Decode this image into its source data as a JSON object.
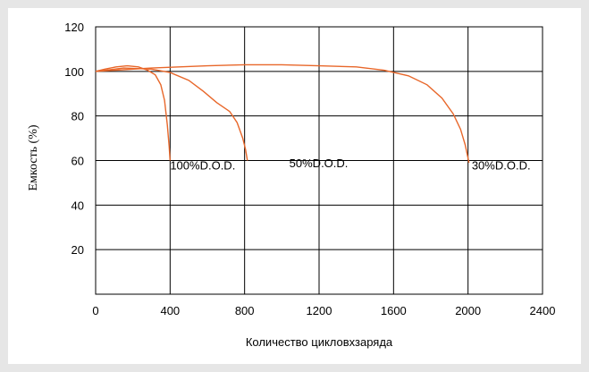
{
  "chart_data": {
    "type": "line",
    "xlabel": "Количество цикловхзаряда",
    "ylabel": "Емкость (%)",
    "xlim": [
      0,
      2400
    ],
    "ylim": [
      0,
      120
    ],
    "x_ticks": [
      "0",
      "400",
      "800",
      "1200",
      "1600",
      "2000",
      "2400"
    ],
    "y_ticks": [
      "20",
      "40",
      "60",
      "80",
      "100",
      "120"
    ],
    "grid": true,
    "color": "#e8672a",
    "series": [
      {
        "points": [
          [
            0,
            100
          ],
          [
            50,
            101
          ],
          [
            110,
            102
          ],
          [
            170,
            102.5
          ],
          [
            230,
            102
          ],
          [
            280,
            100.5
          ],
          [
            320,
            98.5
          ],
          [
            350,
            94
          ],
          [
            370,
            87
          ],
          [
            385,
            76
          ],
          [
            395,
            66
          ],
          [
            400,
            60
          ]
        ]
      },
      {
        "points": [
          [
            0,
            100
          ],
          [
            150,
            101.5
          ],
          [
            300,
            101
          ],
          [
            400,
            99.5
          ],
          [
            500,
            96
          ],
          [
            580,
            91
          ],
          [
            650,
            86
          ],
          [
            720,
            82
          ],
          [
            760,
            77
          ],
          [
            790,
            70
          ],
          [
            805,
            65
          ],
          [
            815,
            60
          ]
        ]
      },
      {
        "points": [
          [
            0,
            100
          ],
          [
            300,
            101.5
          ],
          [
            600,
            102.5
          ],
          [
            800,
            103
          ],
          [
            1000,
            103
          ],
          [
            1200,
            102.5
          ],
          [
            1400,
            102
          ],
          [
            1550,
            100.5
          ],
          [
            1680,
            98
          ],
          [
            1780,
            94
          ],
          [
            1860,
            88
          ],
          [
            1920,
            81
          ],
          [
            1960,
            74
          ],
          [
            1985,
            67
          ],
          [
            2000,
            61
          ],
          [
            2005,
            59
          ]
        ]
      }
    ],
    "annotations": [
      {
        "text": "100%D.O.D.",
        "x": 400,
        "y": 56
      },
      {
        "text": "50%D.O.D.",
        "x": 1040,
        "y": 57
      },
      {
        "text": "30%D.O.D.",
        "x": 2020,
        "y": 56
      }
    ]
  }
}
